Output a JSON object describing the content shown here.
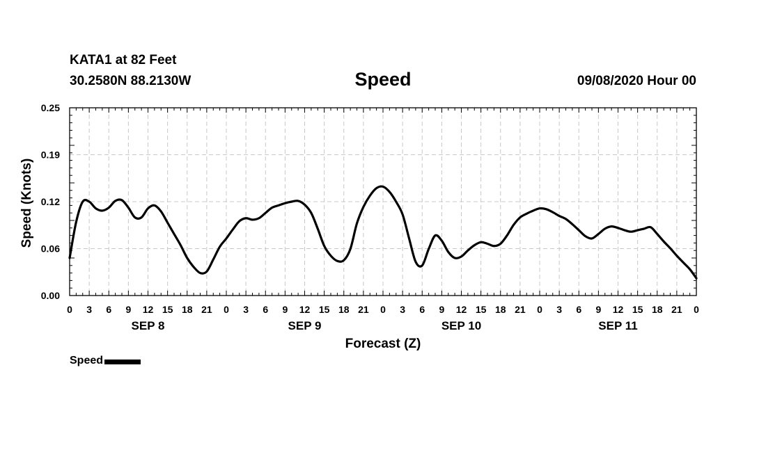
{
  "header": {
    "station": "KATA1 at 82 Feet",
    "coords": "30.2580N 88.2130W",
    "title": "Speed",
    "timestamp": "09/08/2020 Hour 00"
  },
  "legend": {
    "label": "Speed",
    "color": "#000000"
  },
  "chart_data": {
    "type": "line",
    "title": "Speed",
    "xlabel": "Forecast (Z)",
    "ylabel": "Speed (Knots)",
    "grid": true,
    "ylim": [
      0,
      0.25
    ],
    "yticks": [
      "0.00",
      "0.06",
      "0.12",
      "0.19",
      "0.25"
    ],
    "xlim": [
      0,
      96
    ],
    "xtick_labels": [
      "0",
      "3",
      "6",
      "9",
      "12",
      "15",
      "18",
      "21",
      "0",
      "3",
      "6",
      "9",
      "12",
      "15",
      "18",
      "21",
      "0",
      "3",
      "6",
      "9",
      "12",
      "15",
      "18",
      "21",
      "0",
      "3",
      "6",
      "9",
      "12",
      "15",
      "18",
      "21",
      "0"
    ],
    "day_labels": [
      "SEP 8",
      "SEP 9",
      "SEP 10",
      "SEP 11"
    ],
    "series": [
      {
        "name": "Speed",
        "color": "#000000",
        "x": [
          0,
          1,
          2,
          3,
          4,
          5,
          6,
          7,
          8,
          9,
          10,
          11,
          12,
          13,
          14,
          15,
          16,
          17,
          18,
          19,
          20,
          21,
          22,
          23,
          24,
          25,
          26,
          27,
          28,
          29,
          30,
          31,
          32,
          33,
          34,
          35,
          36,
          37,
          38,
          39,
          40,
          41,
          42,
          43,
          44,
          45,
          46,
          47,
          48,
          49,
          50,
          51,
          52,
          53,
          54,
          55,
          56,
          57,
          58,
          59,
          60,
          61,
          62,
          63,
          64,
          65,
          66,
          67,
          68,
          69,
          70,
          71,
          72,
          73,
          74,
          75,
          76,
          77,
          78,
          79,
          80,
          81,
          82,
          83,
          84,
          85,
          86,
          87,
          88,
          89,
          90,
          91,
          92,
          93,
          94,
          95,
          96
        ],
        "values": [
          0.05,
          0.098,
          0.125,
          0.125,
          0.116,
          0.113,
          0.117,
          0.126,
          0.127,
          0.117,
          0.104,
          0.104,
          0.116,
          0.12,
          0.112,
          0.097,
          0.082,
          0.067,
          0.05,
          0.038,
          0.03,
          0.032,
          0.048,
          0.065,
          0.076,
          0.088,
          0.099,
          0.103,
          0.101,
          0.103,
          0.11,
          0.117,
          0.12,
          0.123,
          0.125,
          0.126,
          0.121,
          0.11,
          0.089,
          0.066,
          0.053,
          0.046,
          0.047,
          0.062,
          0.096,
          0.118,
          0.133,
          0.143,
          0.145,
          0.138,
          0.125,
          0.108,
          0.076,
          0.045,
          0.04,
          0.062,
          0.08,
          0.073,
          0.058,
          0.05,
          0.052,
          0.06,
          0.067,
          0.071,
          0.069,
          0.066,
          0.069,
          0.08,
          0.094,
          0.104,
          0.109,
          0.113,
          0.116,
          0.115,
          0.111,
          0.106,
          0.102,
          0.095,
          0.087,
          0.079,
          0.076,
          0.082,
          0.089,
          0.092,
          0.09,
          0.087,
          0.085,
          0.087,
          0.089,
          0.091,
          0.082,
          0.072,
          0.063,
          0.053,
          0.044,
          0.035,
          0.023
        ]
      }
    ]
  }
}
